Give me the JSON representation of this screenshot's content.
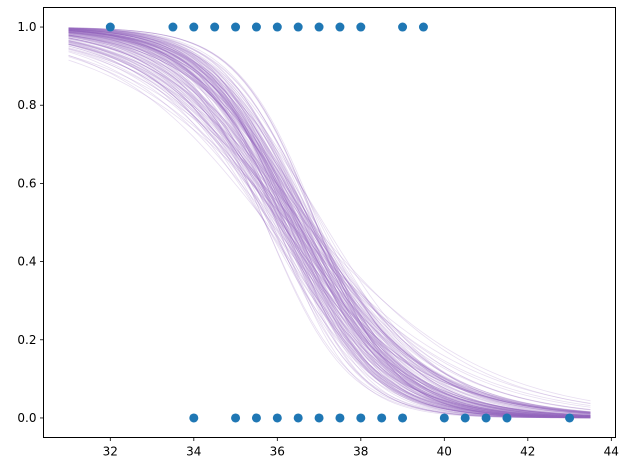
{
  "chart_data": {
    "type": "scatter",
    "title": "",
    "xlabel": "",
    "ylabel": "",
    "xlim": [
      30.4,
      44.1
    ],
    "ylim": [
      -0.05,
      1.05
    ],
    "x_ticks": [
      "32",
      "34",
      "36",
      "38",
      "40",
      "42",
      "44"
    ],
    "y_ticks": [
      "0.0",
      "0.2",
      "0.4",
      "0.6",
      "0.8",
      "1.0"
    ],
    "grid": false,
    "legend": "none",
    "points": {
      "color": "#1f77b4",
      "y1_x": [
        32,
        33.5,
        34,
        34.5,
        35,
        35.5,
        36,
        36.5,
        37,
        37.5,
        38,
        39,
        39.5
      ],
      "y0_x": [
        34,
        35,
        35.5,
        36,
        36.5,
        37,
        37.5,
        38,
        38.5,
        39,
        40,
        40.5,
        41,
        41.5,
        43
      ]
    },
    "curves": {
      "type": "line",
      "count": 160,
      "color": "#9467bd",
      "x_range": [
        31,
        43.5
      ],
      "function": "logistic",
      "midpoint_range": [
        35.7,
        37.1
      ],
      "steepness_range": [
        0.45,
        1.15
      ]
    }
  }
}
